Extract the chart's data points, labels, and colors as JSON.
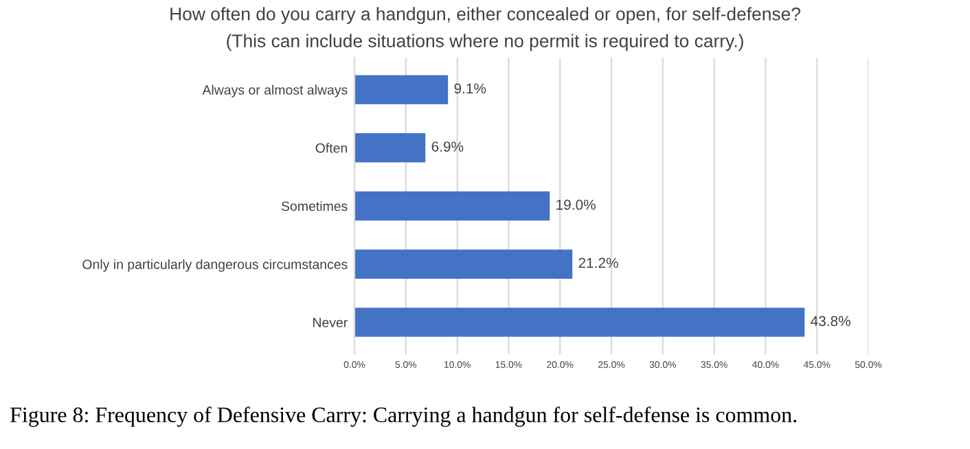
{
  "chart_data": {
    "type": "bar",
    "orientation": "horizontal",
    "title": "How often do you carry a handgun, either concealed or open, for self-defense?",
    "subtitle": "(This can include situations where no permit is required to carry.)",
    "categories": [
      "Always or almost always",
      "Often",
      "Sometimes",
      "Only in particularly dangerous circumstances",
      "Never"
    ],
    "values": [
      9.1,
      6.9,
      19.0,
      21.2,
      43.8
    ],
    "value_labels": [
      "9.1%",
      "6.9%",
      "19.0%",
      "21.2%",
      "43.8%"
    ],
    "color": "#4472c4",
    "xlim": [
      0,
      50
    ],
    "xticks": [
      {
        "value": 0,
        "label": "0.0%"
      },
      {
        "value": 5,
        "label": "5.0%"
      },
      {
        "value": 10,
        "label": "10.0%"
      },
      {
        "value": 15,
        "label": "15.0%"
      },
      {
        "value": 20,
        "label": "20.0%"
      },
      {
        "value": 25,
        "label": "25.0%"
      },
      {
        "value": 30,
        "label": "30.0%"
      },
      {
        "value": 35,
        "label": "35.0%"
      },
      {
        "value": 40,
        "label": "40.0%"
      },
      {
        "value": 45,
        "label": "45.0%"
      },
      {
        "value": 50,
        "label": "50.0%"
      }
    ],
    "grid": "x",
    "legend": false,
    "annotations": [
      "Figure 8: Frequency of Defensive Carry: Carrying a handgun for self-defense is common."
    ]
  }
}
